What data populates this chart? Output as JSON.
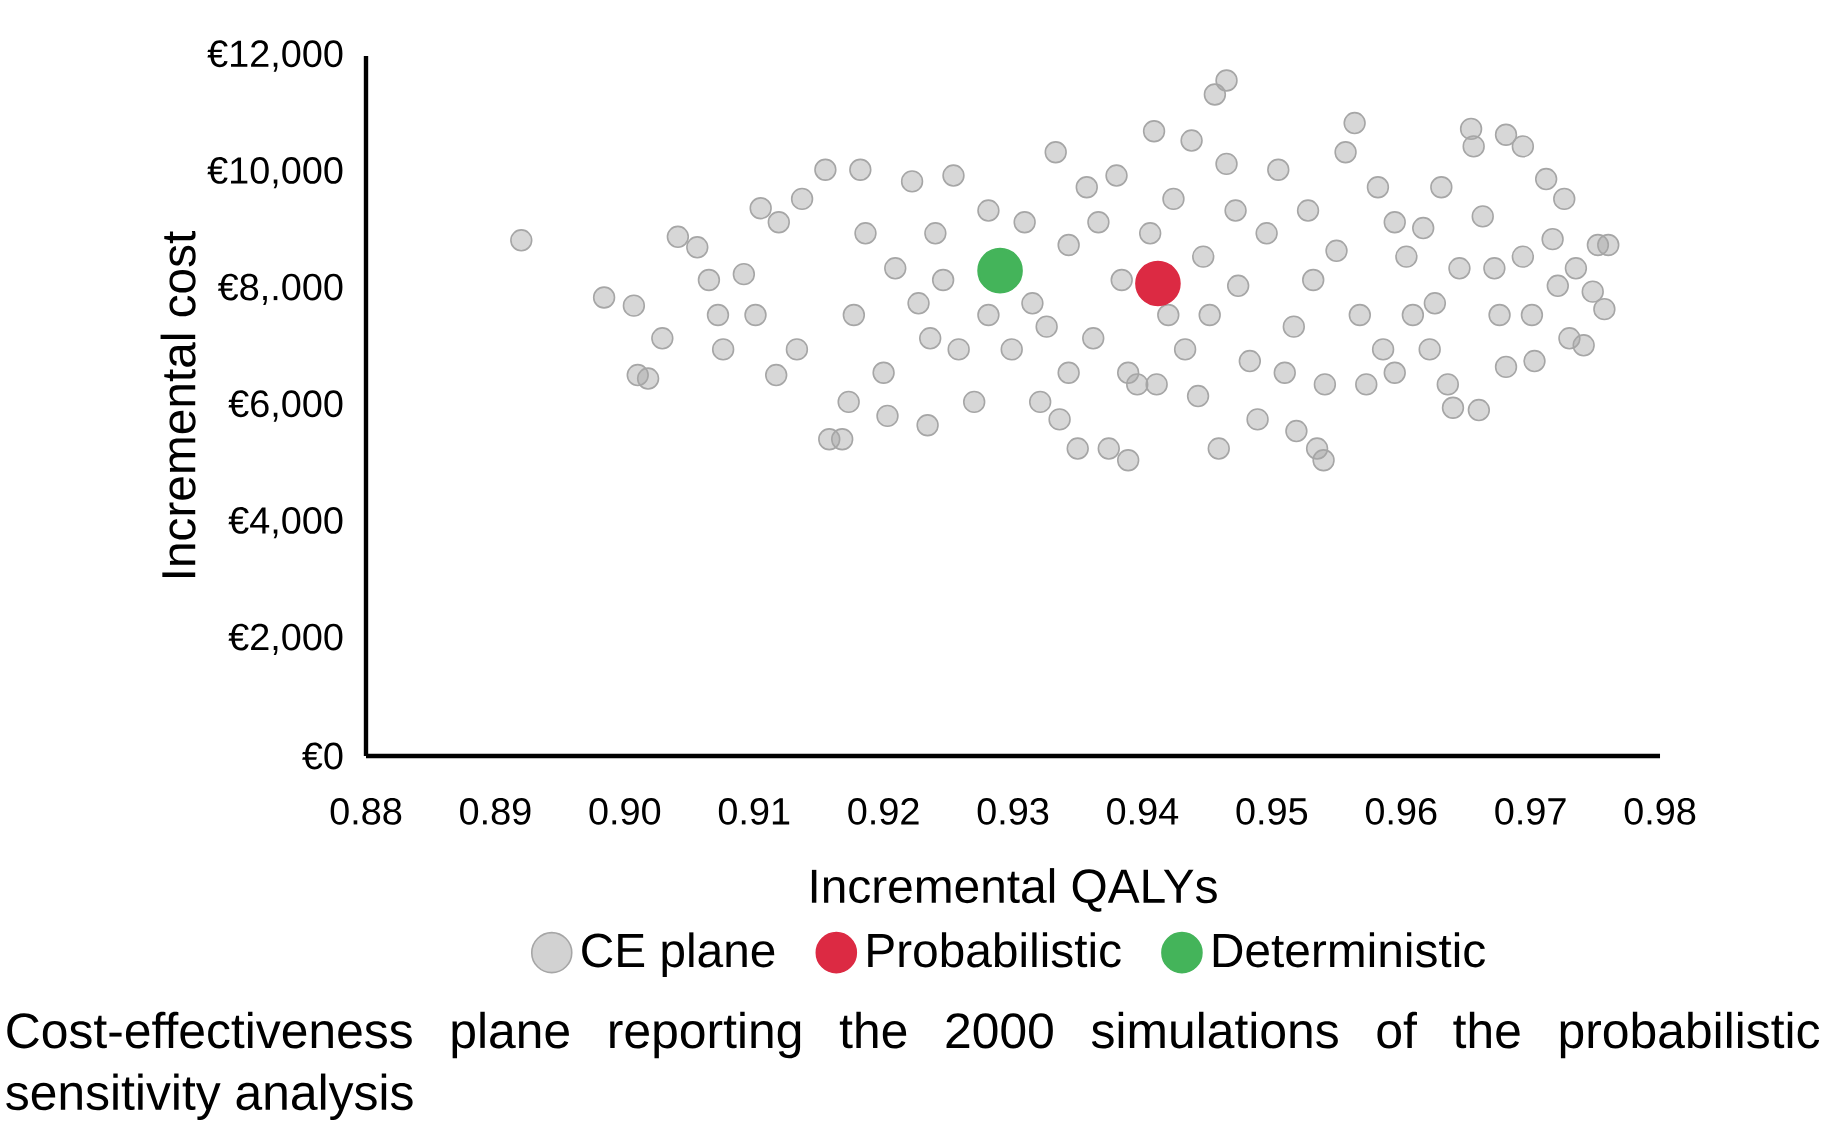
{
  "chart_data": {
    "type": "scatter",
    "xlabel": "Incremental QALYs",
    "ylabel": "Incremental cost",
    "xlim": [
      0.88,
      0.98
    ],
    "xticks": [
      {
        "value": 0.88,
        "label": "0.88"
      },
      {
        "value": 0.89,
        "label": "0.89"
      },
      {
        "value": 0.9,
        "label": "0.90"
      },
      {
        "value": 0.91,
        "label": "0.91"
      },
      {
        "value": 0.92,
        "label": "0.92"
      },
      {
        "value": 0.93,
        "label": "0.93"
      },
      {
        "value": 0.94,
        "label": "0.94"
      },
      {
        "value": 0.95,
        "label": "0.95"
      },
      {
        "value": 0.96,
        "label": "0.96"
      },
      {
        "value": 0.97,
        "label": "0.97"
      },
      {
        "value": 0.98,
        "label": "0.98"
      }
    ],
    "ylim": [
      0,
      12000
    ],
    "yticks": [
      {
        "value": 0,
        "label": "€0"
      },
      {
        "value": 2000,
        "label": "€2,000"
      },
      {
        "value": 4000,
        "label": "€4,000"
      },
      {
        "value": 6000,
        "label": "€6,000"
      },
      {
        "value": 8000,
        "label": "€8,.000"
      },
      {
        "value": 10000,
        "label": "€10,000"
      },
      {
        "value": 12000,
        "label": "€12,000"
      }
    ],
    "legend": "bottom",
    "series": [
      {
        "name": "CE plane",
        "color": "#a6a6a6",
        "x": [
          0.892,
          0.8984,
          0.9007,
          0.901,
          0.9018,
          0.9029,
          0.9041,
          0.9056,
          0.9065,
          0.9072,
          0.9076,
          0.9092,
          0.9101,
          0.9105,
          0.9117,
          0.9119,
          0.9133,
          0.9137,
          0.9155,
          0.9158,
          0.9168,
          0.9173,
          0.9182,
          0.9177,
          0.9186,
          0.92,
          0.9203,
          0.9209,
          0.9222,
          0.9227,
          0.9234,
          0.924,
          0.9246,
          0.9254,
          0.9258,
          0.927,
          0.9281,
          0.9299,
          0.9309,
          0.9315,
          0.9321,
          0.9333,
          0.9336,
          0.9343,
          0.935,
          0.9357,
          0.9362,
          0.9374,
          0.938,
          0.9384,
          0.9389,
          0.9389,
          0.9396,
          0.9406,
          0.9409,
          0.942,
          0.9424,
          0.9433,
          0.9438,
          0.9447,
          0.9456,
          0.9459,
          0.9465,
          0.9465,
          0.9472,
          0.9474,
          0.9483,
          0.9489,
          0.9496,
          0.9505,
          0.9517,
          0.9519,
          0.9528,
          0.9532,
          0.9535,
          0.954,
          0.9541,
          0.955,
          0.9557,
          0.9564,
          0.9568,
          0.9573,
          0.9582,
          0.9586,
          0.9595,
          0.9604,
          0.9609,
          0.9617,
          0.9626,
          0.9631,
          0.9636,
          0.964,
          0.9645,
          0.9654,
          0.9656,
          0.966,
          0.9663,
          0.9672,
          0.9676,
          0.9681,
          0.9681,
          0.9694,
          0.9694,
          0.9701,
          0.9703,
          0.9712,
          0.9717,
          0.9721,
          0.9726,
          0.973,
          0.9735,
          0.9741,
          0.9748,
          0.9752,
          0.9757,
          0.976,
          0.9326,
          0.9366,
          0.9452,
          0.9411,
          0.9281,
          0.9236,
          0.9343,
          0.9443,
          0.951,
          0.9595,
          0.9622
        ],
        "values": [
          8840,
          7860,
          7720,
          6530,
          6470,
          7160,
          8900,
          8720,
          8160,
          7560,
          6970,
          8260,
          7560,
          9390,
          6530,
          9150,
          6970,
          9550,
          10050,
          5430,
          5430,
          6070,
          10050,
          7560,
          8960,
          6570,
          5830,
          8360,
          9850,
          7760,
          5670,
          8960,
          8160,
          9950,
          6970,
          6070,
          9350,
          6970,
          9150,
          7760,
          6070,
          10350,
          5770,
          8760,
          5270,
          9750,
          7160,
          5270,
          9950,
          8160,
          5070,
          6570,
          6370,
          8960,
          10710,
          7560,
          9550,
          6970,
          10550,
          8560,
          11340,
          5270,
          11580,
          10150,
          9350,
          8060,
          6770,
          5770,
          8960,
          10050,
          7360,
          5570,
          9350,
          8160,
          5270,
          5070,
          6370,
          8660,
          10350,
          10850,
          7560,
          6370,
          9750,
          6970,
          9150,
          8560,
          7560,
          9050,
          7760,
          9750,
          6370,
          5970,
          8360,
          10750,
          10450,
          5930,
          9250,
          8360,
          7560,
          6670,
          10650,
          10450,
          8560,
          7560,
          6770,
          9890,
          8860,
          8060,
          9550,
          7160,
          8360,
          7040,
          7960,
          8760,
          7660,
          8760,
          7360,
          9150,
          7560,
          6370,
          7560,
          7160,
          6570,
          6170,
          6570,
          6570,
          6970
        ]
      },
      {
        "name": "Probabilistic",
        "color": "#dc2a43",
        "x": [
          0.9412
        ],
        "values": [
          8100
        ]
      },
      {
        "name": "Deterministic",
        "color": "#44b45a",
        "x": [
          0.929
        ],
        "values": [
          8320
        ]
      }
    ],
    "annotations": [
      "Cost-effectiveness plane reporting the 2000 simulations of the probabilistic sensitivity analysis"
    ]
  }
}
